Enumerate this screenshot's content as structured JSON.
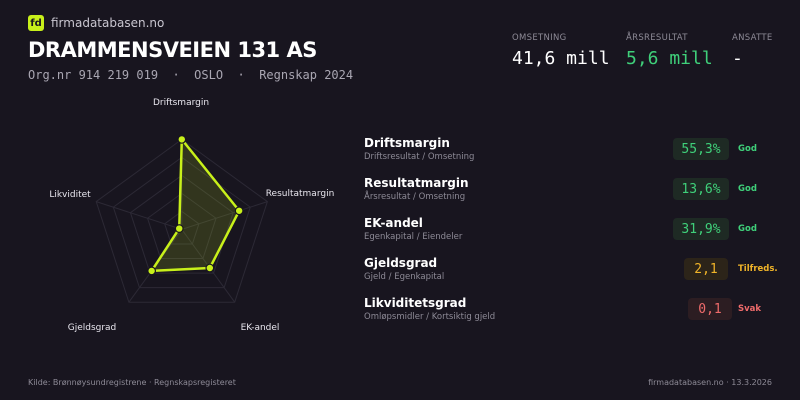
{
  "brand": {
    "logo": "fd",
    "name": "firmadatabasen.no"
  },
  "company": {
    "name": "DRAMMENSVEIEN 131 AS",
    "subtitle": "Org.nr 914 219 019  ·  OSLO  ·  Regnskap 2024"
  },
  "kpis": [
    {
      "label": "OMSETNING",
      "value": "41,6 mill",
      "color": "#ffffff"
    },
    {
      "label": "ÅRSRESULTAT",
      "value": "5,6 mill",
      "color": "#3fd07a"
    },
    {
      "label": "ANSATTE",
      "value": "-",
      "color": "#ffffff"
    }
  ],
  "chart_data": {
    "type": "radar",
    "axes": [
      "Driftsmargin",
      "Resultatmargin",
      "EK-andel",
      "Gjeldsgrad",
      "Likviditet"
    ],
    "values": [
      1.0,
      0.67,
      0.53,
      0.57,
      0.03
    ],
    "range": [
      0,
      1
    ],
    "rings": 5,
    "color": "#c8f01a"
  },
  "ratios": [
    {
      "name": "Driftsmargin",
      "desc": "Driftsresultat / Omsetning",
      "value": "55,3%",
      "status": "God",
      "color": "#3fd07a",
      "bg": "#1e2a24"
    },
    {
      "name": "Resultatmargin",
      "desc": "Årsresultat / Omsetning",
      "value": "13,6%",
      "status": "God",
      "color": "#3fd07a",
      "bg": "#1e2a24"
    },
    {
      "name": "EK-andel",
      "desc": "Egenkapital / Eiendeler",
      "value": "31,9%",
      "status": "God",
      "color": "#3fd07a",
      "bg": "#1e2a24"
    },
    {
      "name": "Gjeldsgrad",
      "desc": "Gjeld / Egenkapital",
      "value": "2,1",
      "status": "Tilfreds.",
      "color": "#f0b429",
      "bg": "#2c2419"
    },
    {
      "name": "Likviditetsgrad",
      "desc": "Omløpsmidler / Kortsiktig gjeld",
      "value": "0,1",
      "status": "Svak",
      "color": "#ef6b6b",
      "bg": "#2c1d22"
    }
  ],
  "footer": {
    "left": "Kilde: Brønnøysundregistrene · Regnskapsregisteret",
    "right": "firmadatabasen.no · 13.3.2026"
  }
}
